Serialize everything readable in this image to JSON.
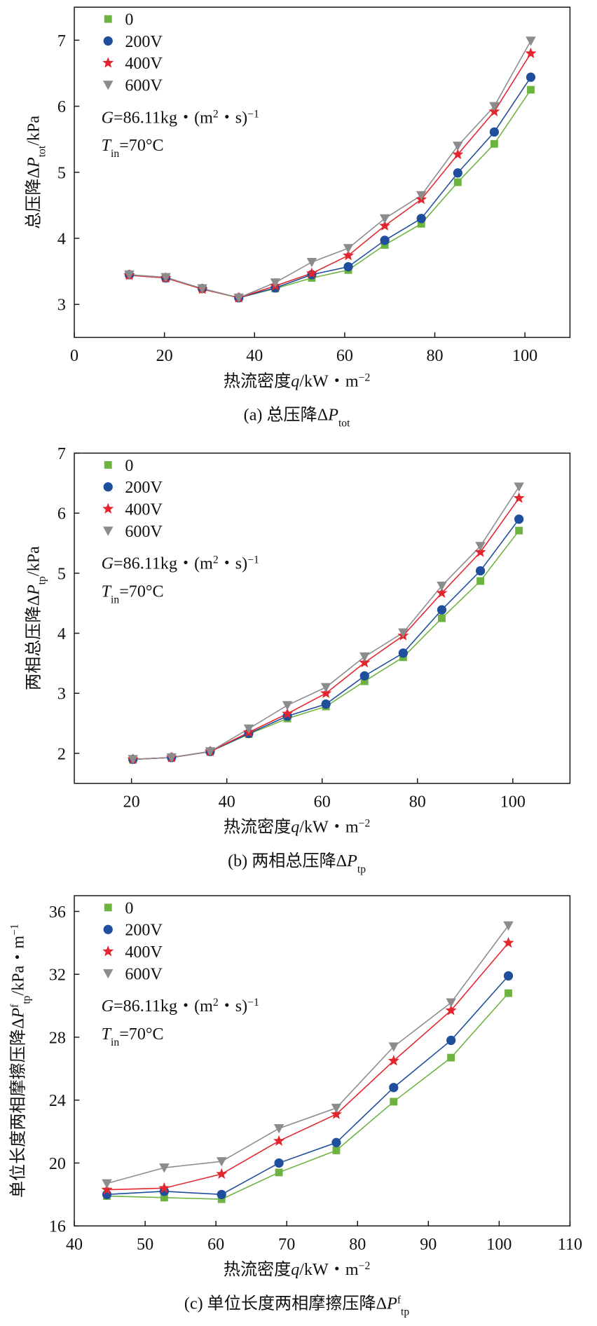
{
  "chart_data": [
    {
      "type": "line",
      "ylabel": [
        {
          "t": "总压降Δ"
        },
        {
          "t": "P",
          "s": "italic"
        },
        {
          "t": "tot",
          "s": "sub"
        },
        {
          "t": "/kPa"
        }
      ],
      "xlabel": [
        {
          "t": "热流密度"
        },
        {
          "t": "q",
          "s": "italic"
        },
        {
          "t": "/kW・m"
        },
        {
          "t": "−2",
          "s": "sup"
        }
      ],
      "caption": [
        {
          "t": "(a) 总压降Δ"
        },
        {
          "t": "P",
          "s": "italic"
        },
        {
          "t": "tot",
          "s": "sub"
        }
      ],
      "annotations": [
        [
          {
            "t": "G",
            "s": "italic"
          },
          {
            "t": "=86.11kg・(m"
          },
          {
            "t": "2",
            "s": "sup"
          },
          {
            "t": "・s)"
          },
          {
            "t": "−1",
            "s": "sup"
          }
        ],
        [
          {
            "t": "T",
            "s": "italic"
          },
          {
            "t": "in",
            "s": "sub"
          },
          {
            "t": "=70°C"
          }
        ]
      ],
      "x": [
        12.2,
        20.3,
        28.4,
        36.5,
        44.6,
        52.7,
        60.8,
        68.9,
        77,
        85.1,
        93.2,
        101.3
      ],
      "xlim": [
        0,
        110
      ],
      "xticks": [
        0,
        20,
        40,
        60,
        80,
        100
      ],
      "ylim": [
        2.5,
        7.5
      ],
      "yticks": [
        3,
        4,
        5,
        6,
        7
      ],
      "series": [
        {
          "name": "0",
          "color": "#6db33f",
          "marker": "square",
          "values": [
            3.45,
            3.4,
            3.24,
            3.1,
            3.24,
            3.4,
            3.52,
            3.9,
            4.22,
            4.85,
            5.43,
            6.25
          ]
        },
        {
          "name": "200V",
          "color": "#1f4e9c",
          "marker": "circle",
          "values": [
            3.45,
            3.4,
            3.24,
            3.1,
            3.25,
            3.45,
            3.57,
            3.97,
            4.3,
            4.99,
            5.61,
            6.44
          ]
        },
        {
          "name": "400V",
          "color": "#e3262e",
          "marker": "star",
          "values": [
            3.44,
            3.4,
            3.23,
            3.1,
            3.28,
            3.47,
            3.74,
            4.19,
            4.59,
            5.27,
            5.92,
            6.8
          ]
        },
        {
          "name": "600V",
          "color": "#8c8c8c",
          "marker": "triangle-down",
          "values": [
            3.45,
            3.41,
            3.24,
            3.1,
            3.33,
            3.64,
            3.85,
            4.3,
            4.65,
            5.4,
            6.0,
            6.99
          ]
        }
      ]
    },
    {
      "type": "line",
      "ylabel": [
        {
          "t": "两相总压降Δ"
        },
        {
          "t": "P",
          "s": "italic"
        },
        {
          "t": "tp",
          "s": "sub"
        },
        {
          "t": "/kPa"
        }
      ],
      "xlabel": [
        {
          "t": "热流密度"
        },
        {
          "t": "q",
          "s": "italic"
        },
        {
          "t": "/kW・m"
        },
        {
          "t": "−2",
          "s": "sup"
        }
      ],
      "caption": [
        {
          "t": "(b) 两相总压降Δ"
        },
        {
          "t": "P",
          "s": "italic"
        },
        {
          "t": "tp",
          "s": "sub"
        }
      ],
      "annotations": [
        [
          {
            "t": "G",
            "s": "italic"
          },
          {
            "t": "=86.11kg・(m"
          },
          {
            "t": "2",
            "s": "sup"
          },
          {
            "t": "・s)"
          },
          {
            "t": "−1",
            "s": "sup"
          }
        ],
        [
          {
            "t": "T",
            "s": "italic"
          },
          {
            "t": "in",
            "s": "sub"
          },
          {
            "t": "=70°C"
          }
        ]
      ],
      "x": [
        20.3,
        28.4,
        36.5,
        44.6,
        52.7,
        60.8,
        68.9,
        77,
        85.1,
        93.2,
        101.3
      ],
      "xlim": [
        8,
        112
      ],
      "xticks": [
        20,
        40,
        60,
        80,
        100
      ],
      "ylim": [
        1.5,
        7
      ],
      "yticks": [
        2,
        3,
        4,
        5,
        6,
        7
      ],
      "series": [
        {
          "name": "0",
          "color": "#6db33f",
          "marker": "square",
          "values": [
            1.9,
            1.93,
            2.03,
            2.32,
            2.58,
            2.78,
            3.2,
            3.6,
            4.25,
            4.87,
            5.71
          ]
        },
        {
          "name": "200V",
          "color": "#1f4e9c",
          "marker": "circle",
          "values": [
            1.9,
            1.93,
            2.03,
            2.33,
            2.62,
            2.82,
            3.29,
            3.67,
            4.39,
            5.04,
            5.9
          ]
        },
        {
          "name": "400V",
          "color": "#e3262e",
          "marker": "star",
          "values": [
            1.9,
            1.93,
            2.03,
            2.35,
            2.66,
            3.0,
            3.51,
            3.96,
            4.67,
            5.35,
            6.25
          ]
        },
        {
          "name": "600V",
          "color": "#8c8c8c",
          "marker": "triangle-down",
          "values": [
            1.9,
            1.93,
            2.03,
            2.41,
            2.8,
            3.1,
            3.61,
            4.01,
            4.79,
            5.45,
            6.44
          ]
        }
      ]
    },
    {
      "type": "line",
      "ylabel": [
        {
          "t": "单位长度两相摩擦压降Δ"
        },
        {
          "t": "P",
          "s": "italic"
        },
        {
          "t": "f",
          "s": "sup"
        },
        {
          "t": "tp",
          "s": "sub"
        },
        {
          "t": "/kPa・m"
        },
        {
          "t": "−1",
          "s": "sup"
        }
      ],
      "xlabel": [
        {
          "t": "热流密度"
        },
        {
          "t": "q",
          "s": "italic"
        },
        {
          "t": "/kW・m"
        },
        {
          "t": "−2",
          "s": "sup"
        }
      ],
      "caption": [
        {
          "t": "(c) 单位长度两相摩擦压降Δ"
        },
        {
          "t": "P",
          "s": "italic"
        },
        {
          "t": "f",
          "s": "sup"
        },
        {
          "t": "tp",
          "s": "sub"
        }
      ],
      "annotations": [
        [
          {
            "t": "G",
            "s": "italic"
          },
          {
            "t": "=86.11kg・(m"
          },
          {
            "t": "2",
            "s": "sup"
          },
          {
            "t": "・s)"
          },
          {
            "t": "−1",
            "s": "sup"
          }
        ],
        [
          {
            "t": "T",
            "s": "italic"
          },
          {
            "t": "in",
            "s": "sub"
          },
          {
            "t": "=70°C"
          }
        ]
      ],
      "x": [
        44.6,
        52.7,
        60.8,
        68.9,
        77,
        85.1,
        93.2,
        101.3
      ],
      "xlim": [
        40,
        110
      ],
      "xticks": [
        40,
        50,
        60,
        70,
        80,
        90,
        100,
        110
      ],
      "ylim": [
        16,
        37
      ],
      "yticks": [
        16,
        20,
        24,
        28,
        32,
        36
      ],
      "series": [
        {
          "name": "0",
          "color": "#6db33f",
          "marker": "square",
          "values": [
            17.9,
            17.8,
            17.7,
            19.4,
            20.8,
            23.9,
            26.7,
            30.8
          ]
        },
        {
          "name": "200V",
          "color": "#1f4e9c",
          "marker": "circle",
          "values": [
            18.0,
            18.2,
            18.0,
            20.0,
            21.3,
            24.8,
            27.8,
            31.9
          ]
        },
        {
          "name": "400V",
          "color": "#e3262e",
          "marker": "star",
          "values": [
            18.3,
            18.4,
            19.3,
            21.4,
            23.1,
            26.5,
            29.7,
            34.0
          ]
        },
        {
          "name": "600V",
          "color": "#8c8c8c",
          "marker": "triangle-down",
          "values": [
            18.7,
            19.7,
            20.1,
            22.2,
            23.5,
            27.4,
            30.2,
            35.1
          ]
        }
      ]
    }
  ]
}
